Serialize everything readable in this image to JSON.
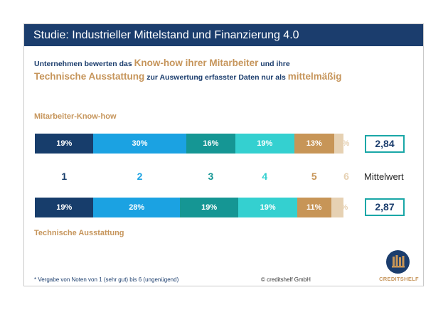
{
  "header": {
    "title": "Studie: Industrieller Mittelstand und Finanzierung 4.0"
  },
  "subtitle": {
    "part1": "Unternehmen bewerten das ",
    "hl1": "Know-how ihrer Mitarbeiter",
    "part2": " und ihre",
    "hl2": "Technische Ausstattung",
    "part3": " zur Auswertung erfasster Daten nur als ",
    "hl3": "mittelmäßig"
  },
  "chart_data": {
    "type": "bar",
    "orientation": "horizontal-stacked-100",
    "categories": [
      "1",
      "2",
      "3",
      "4",
      "5",
      "6"
    ],
    "colors": [
      "#173d6b",
      "#1ba2e2",
      "#159694",
      "#34d0d0",
      "#c79557",
      "#e6d1b3"
    ],
    "series": [
      {
        "name": "Mitarbeiter-Know-how",
        "values": [
          19,
          30,
          16,
          19,
          13,
          3
        ],
        "labels": [
          "19%",
          "30%",
          "16%",
          "19%",
          "13%",
          "3%"
        ],
        "mean": "2,84"
      },
      {
        "name": "Technische Ausstattung",
        "values": [
          19,
          28,
          19,
          19,
          11,
          4
        ],
        "labels": [
          "19%",
          "28%",
          "19%",
          "19%",
          "11%",
          "4%"
        ],
        "mean": "2,87"
      }
    ],
    "scale_label_colors": [
      "#173d6b",
      "#1ba2e2",
      "#159694",
      "#34d0d0",
      "#c79557",
      "#e6d1b3"
    ],
    "mean_label": "Mittelwert"
  },
  "footnote": "* Vergabe von Noten von 1 (sehr gut) bis 6 (ungenügend)",
  "copyright": "© creditshelf GmbH",
  "logo": {
    "text": "CREDITSHELF",
    "icon": "bookshelf-icon"
  }
}
